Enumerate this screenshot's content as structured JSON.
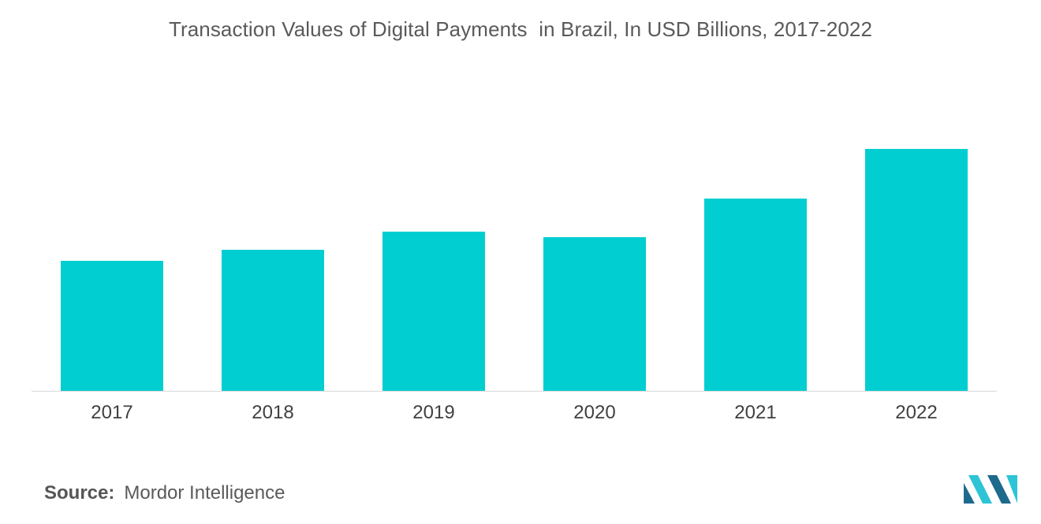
{
  "chart_data": {
    "type": "bar",
    "title": "Transaction Values of Digital Payments  in Brazil, In USD Billions, 2017-2022",
    "xlabel": "",
    "ylabel": "",
    "categories": [
      "2017",
      "2018",
      "2019",
      "2020",
      "2021",
      "2022"
    ],
    "values": [
      165,
      179,
      202,
      195,
      244,
      307
    ],
    "ylim": [
      0,
      330
    ],
    "grid": false,
    "bar_color": "#00ced1"
  },
  "footer": {
    "source_label": "Source:",
    "source_value": "Mordor Intelligence"
  },
  "colors": {
    "title": "#5a5a5a",
    "axis": "#d9d9d9",
    "tick_label": "#404040",
    "logo_dark": "#1e6a8d",
    "logo_light": "#2ec4d6"
  },
  "logo": {
    "icon": "mordor-intelligence-logo-icon"
  }
}
